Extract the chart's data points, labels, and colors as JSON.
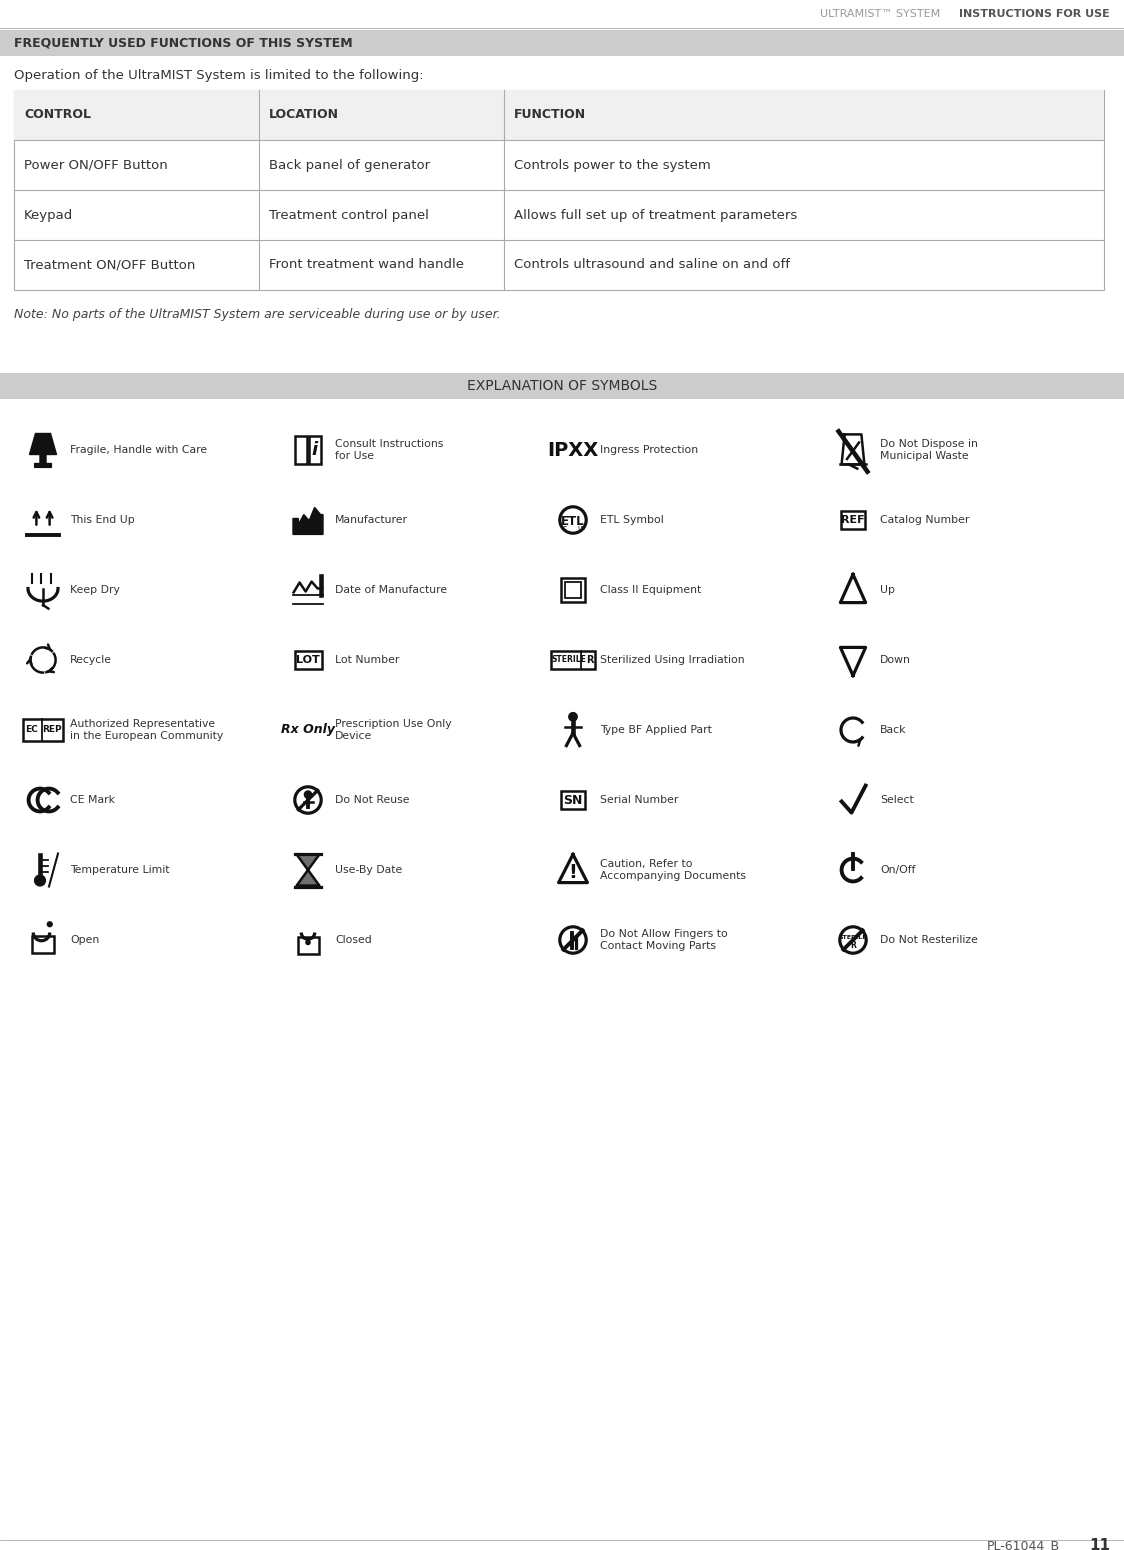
{
  "page_width": 11.24,
  "page_height": 15.5,
  "bg_color": "#ffffff",
  "header_bg": "#cccccc",
  "header_text_left": "FREQUENTLY USED FUNCTIONS OF THIS SYSTEM",
  "header_text_right_normal": "ULTRAMIST™ SYSTEM  ",
  "header_text_right_bold": "INSTRUCTIONS FOR USE",
  "intro_text": "Operation of the UltraMIST System is limited to the following:",
  "table_headers": [
    "CONTROL",
    "LOCATION",
    "FUNCTION"
  ],
  "table_rows": [
    [
      "Power ON/OFF Button",
      "Back panel of generator",
      "Controls power to the system"
    ],
    [
      "Keypad",
      "Treatment control panel",
      "Allows full set up of treatment parameters"
    ],
    [
      "Treatment ON/OFF Button",
      "Front treatment wand handle",
      "Controls ultrasound and saline on and off"
    ]
  ],
  "note_text": "Note: No parts of the UltraMIST System are serviceable during use or by user.",
  "symbols_header": "EXPLANATION OF SYMBOLS",
  "symbols_header_bg": "#cccccc",
  "footer_text": "PL-61044_B",
  "footer_page": "11",
  "symbols": [
    {
      "col": 0,
      "row": 0,
      "icon": "fragile",
      "label": "Fragile, Handle with Care"
    },
    {
      "col": 0,
      "row": 1,
      "icon": "this_end_up",
      "label": "This End Up"
    },
    {
      "col": 0,
      "row": 2,
      "icon": "keep_dry",
      "label": "Keep Dry"
    },
    {
      "col": 0,
      "row": 3,
      "icon": "recycle",
      "label": "Recycle"
    },
    {
      "col": 0,
      "row": 4,
      "icon": "ec_rep",
      "label": "Authorized Representative\nin the European Community"
    },
    {
      "col": 0,
      "row": 5,
      "icon": "ce_mark",
      "label": "CE Mark"
    },
    {
      "col": 0,
      "row": 6,
      "icon": "temp_limit",
      "label": "Temperature Limit"
    },
    {
      "col": 0,
      "row": 7,
      "icon": "open",
      "label": "Open"
    },
    {
      "col": 1,
      "row": 0,
      "icon": "consult",
      "label": "Consult Instructions\nfor Use"
    },
    {
      "col": 1,
      "row": 1,
      "icon": "manufacturer",
      "label": "Manufacturer"
    },
    {
      "col": 1,
      "row": 2,
      "icon": "date_mfg",
      "label": "Date of Manufacture"
    },
    {
      "col": 1,
      "row": 3,
      "icon": "lot",
      "label": "Lot Number"
    },
    {
      "col": 1,
      "row": 4,
      "icon": "rx_only",
      "label": "Prescription Use Only\nDevice"
    },
    {
      "col": 1,
      "row": 5,
      "icon": "do_not_reuse",
      "label": "Do Not Reuse"
    },
    {
      "col": 1,
      "row": 6,
      "icon": "use_by",
      "label": "Use-By Date"
    },
    {
      "col": 1,
      "row": 7,
      "icon": "closed",
      "label": "Closed"
    },
    {
      "col": 2,
      "row": 0,
      "icon": "ipxx",
      "label": "Ingress Protection"
    },
    {
      "col": 2,
      "row": 1,
      "icon": "etl",
      "label": "ETL Symbol"
    },
    {
      "col": 2,
      "row": 2,
      "icon": "class_ii",
      "label": "Class II Equipment"
    },
    {
      "col": 2,
      "row": 3,
      "icon": "sterile_r",
      "label": "Sterilized Using Irradiation"
    },
    {
      "col": 2,
      "row": 4,
      "icon": "type_bf",
      "label": "Type BF Applied Part"
    },
    {
      "col": 2,
      "row": 5,
      "icon": "sn",
      "label": "Serial Number"
    },
    {
      "col": 2,
      "row": 6,
      "icon": "caution",
      "label": "Caution, Refer to\nAccompanying Documents"
    },
    {
      "col": 2,
      "row": 7,
      "icon": "no_fingers",
      "label": "Do Not Allow Fingers to\nContact Moving Parts"
    },
    {
      "col": 3,
      "row": 0,
      "icon": "no_dispose",
      "label": "Do Not Dispose in\nMunicipal Waste"
    },
    {
      "col": 3,
      "row": 1,
      "icon": "catalog",
      "label": "Catalog Number"
    },
    {
      "col": 3,
      "row": 2,
      "icon": "up_arrow",
      "label": "Up"
    },
    {
      "col": 3,
      "row": 3,
      "icon": "down_arrow",
      "label": "Down"
    },
    {
      "col": 3,
      "row": 4,
      "icon": "back",
      "label": "Back"
    },
    {
      "col": 3,
      "row": 5,
      "icon": "select",
      "label": "Select"
    },
    {
      "col": 3,
      "row": 6,
      "icon": "on_off",
      "label": "On/Off"
    },
    {
      "col": 3,
      "row": 7,
      "icon": "no_resterilize",
      "label": "Do Not Resterilize"
    }
  ]
}
